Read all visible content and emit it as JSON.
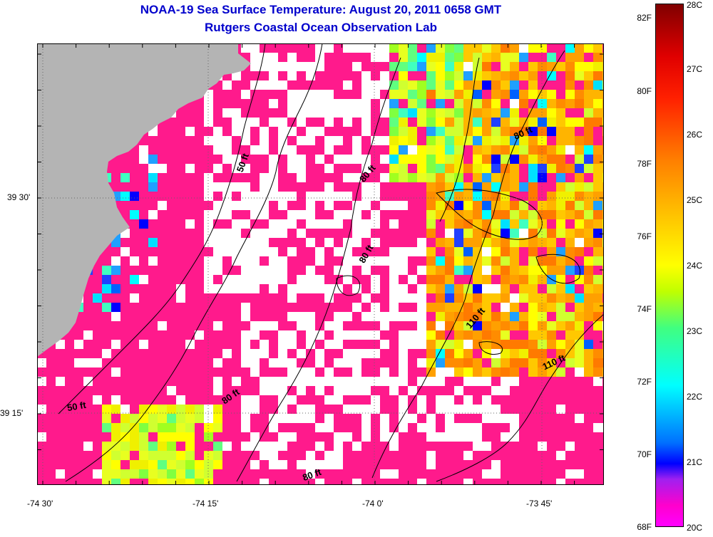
{
  "title": {
    "line1": "NOAA-19 Sea Surface Temperature:  August 20, 2011 0658 GMT",
    "line2": "Rutgers Coastal Ocean Observation Lab"
  },
  "map": {
    "longitude_labels": [
      "-74 30'",
      "-74 15'",
      "-74 0'",
      "-73 45'"
    ],
    "latitude_labels": [
      "39 30'",
      "39 15'"
    ],
    "depth_contour_labels": [
      "50 ft",
      "80 ft",
      "80 ft",
      "80 ft",
      "50 ft",
      "80 ft",
      "110 ft",
      "110 ft",
      "80 ft"
    ],
    "land_color": "#b4b4b4",
    "cloud_color": "#ff1a8c",
    "no_data_color": "#ffffff"
  },
  "colorbar": {
    "fahrenheit_labels": [
      "82F",
      "80F",
      "78F",
      "76F",
      "74F",
      "72F",
      "70F",
      "68F"
    ],
    "celsius_labels": [
      "28C",
      "27C",
      "26C",
      "25C",
      "24C",
      "23C",
      "22C",
      "21C",
      "20C"
    ],
    "colors": {
      "min": "#ff00ff",
      "low": "#0000ff",
      "mid_low": "#00ffff",
      "mid": "#ffff00",
      "mid_high": "#ff8000",
      "max": "#800000"
    }
  }
}
